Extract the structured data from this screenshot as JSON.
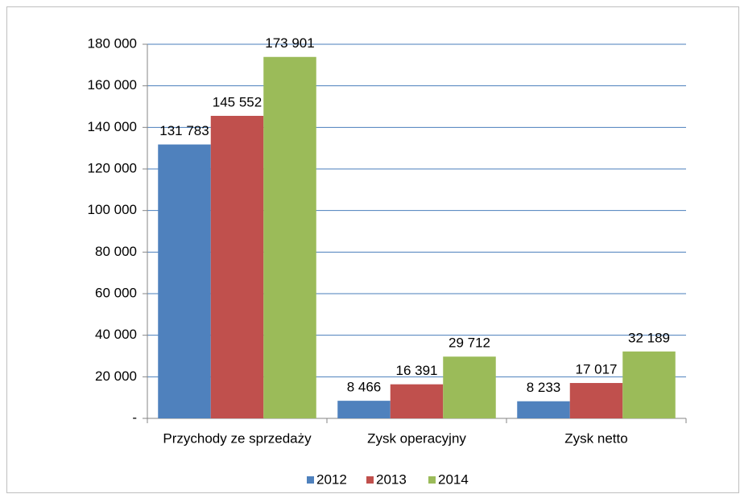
{
  "chart_data": {
    "type": "bar",
    "categories": [
      "Przychody ze sprzedaży",
      "Zysk operacyjny",
      "Zysk netto"
    ],
    "series": [
      {
        "name": "2012",
        "color": "#4f81bd",
        "values": [
          131783,
          8466,
          8233
        ],
        "value_labels": [
          "131 783",
          "8 466",
          "8 233"
        ]
      },
      {
        "name": "2013",
        "color": "#c0504d",
        "values": [
          145552,
          16391,
          17017
        ],
        "value_labels": [
          "145 552",
          "16 391",
          "17 017"
        ]
      },
      {
        "name": "2014",
        "color": "#9bbb59",
        "values": [
          173901,
          29712,
          32189
        ],
        "value_labels": [
          "173 901",
          "29 712",
          "32 189"
        ]
      }
    ],
    "ylim": [
      0,
      180000
    ],
    "yticks": [
      {
        "value": 0,
        "label": "-"
      },
      {
        "value": 20000,
        "label": "20 000"
      },
      {
        "value": 40000,
        "label": "40 000"
      },
      {
        "value": 60000,
        "label": "60 000"
      },
      {
        "value": 80000,
        "label": "80 000"
      },
      {
        "value": 100000,
        "label": "100 000"
      },
      {
        "value": 120000,
        "label": "120 000"
      },
      {
        "value": 140000,
        "label": "140 000"
      },
      {
        "value": 160000,
        "label": "160 000"
      },
      {
        "value": 180000,
        "label": "180 000"
      }
    ],
    "grid": true,
    "legend": "bottom"
  }
}
